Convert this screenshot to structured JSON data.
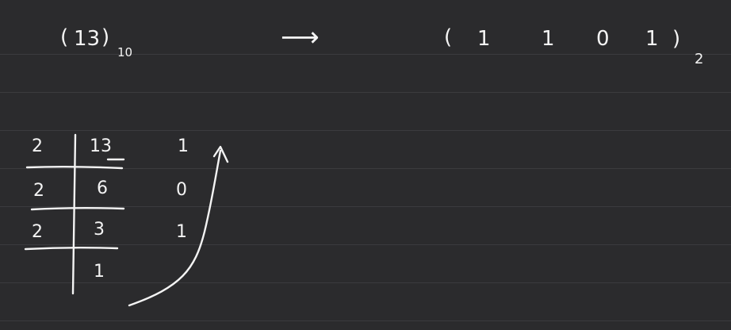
{
  "top_line": {
    "lhs_open": "(",
    "lhs_number": "13",
    "lhs_close": ")",
    "lhs_base": "10",
    "arrow": "⟶",
    "rhs_open": "(",
    "rhs_digits": [
      "1",
      "1",
      "0",
      "1"
    ],
    "rhs_close": ")",
    "rhs_base": "2"
  },
  "division_table": {
    "rows": [
      {
        "divisor": "2",
        "dividend": "13",
        "remainder": "1"
      },
      {
        "divisor": "2",
        "dividend": "6",
        "remainder": "0"
      },
      {
        "divisor": "2",
        "dividend": "3",
        "remainder": "1"
      }
    ],
    "final_quotient": "1"
  },
  "colors": {
    "board": "#2b2b2d",
    "rule_line": "#3b3b3e",
    "ink": "#f4f4f4"
  }
}
